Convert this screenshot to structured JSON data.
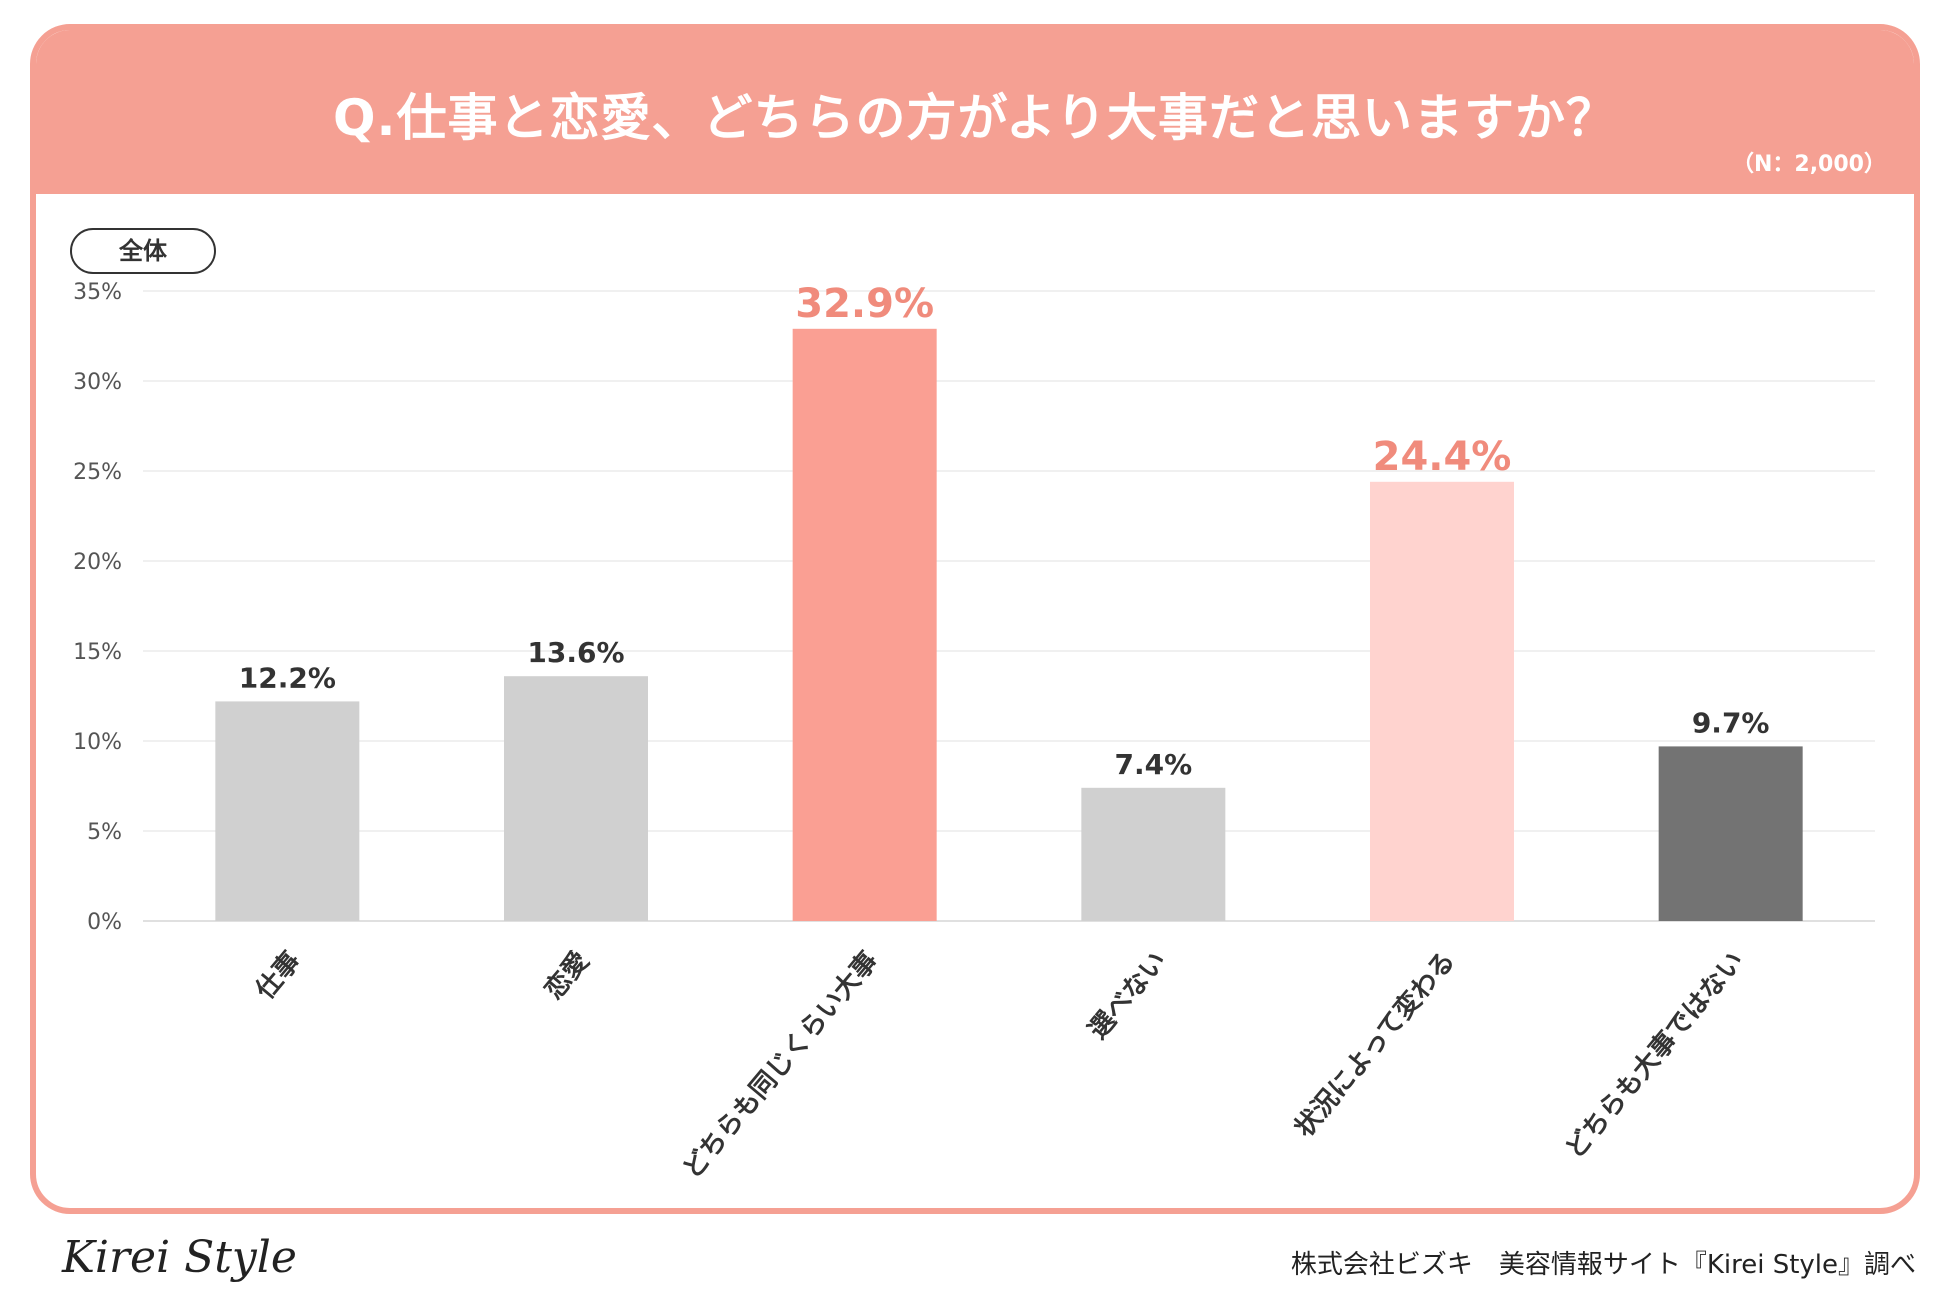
{
  "header": {
    "title": "Q.仕事と恋愛、どちらの方がより大事だと思いますか？",
    "sample": "（N：2,000）"
  },
  "pill_label": "全体",
  "footer": {
    "logo": "Kirei Style",
    "credit": "株式会社ビズキ　美容情報サイト『Kirei Style』調べ"
  },
  "colors": {
    "accent": "#f5a093",
    "highlight_label": "#f08b7c",
    "grey_bar": "#d0d0d0",
    "dark_bar": "#737373",
    "light_pink_bar": "#ffd3cf",
    "salmon_bar": "#fa9f93"
  },
  "chart_data": {
    "type": "bar",
    "categories": [
      "仕事",
      "恋愛",
      "どちらも同じくらい大事",
      "選べない",
      "状況によって変わる",
      "どちらも大事ではない"
    ],
    "values": [
      12.2,
      13.6,
      32.9,
      7.4,
      24.4,
      9.7
    ],
    "value_labels": [
      "12.2%",
      "13.6%",
      "32.9%",
      "7.4%",
      "24.4%",
      "9.7%"
    ],
    "bar_colors": [
      "#d0d0d0",
      "#d0d0d0",
      "#fa9f93",
      "#d0d0d0",
      "#ffd3cf",
      "#737373"
    ],
    "highlighted": [
      false,
      false,
      true,
      false,
      true,
      false
    ],
    "ylim": [
      0,
      35
    ],
    "yticks": [
      0,
      5,
      10,
      15,
      20,
      25,
      30,
      35
    ],
    "ytick_labels": [
      "0%",
      "5%",
      "10%",
      "15%",
      "20%",
      "25%",
      "30%",
      "35%"
    ],
    "grid": true,
    "title": "Q.仕事と恋愛、どちらの方がより大事だと思いますか？",
    "xlabel": "",
    "ylabel": ""
  }
}
